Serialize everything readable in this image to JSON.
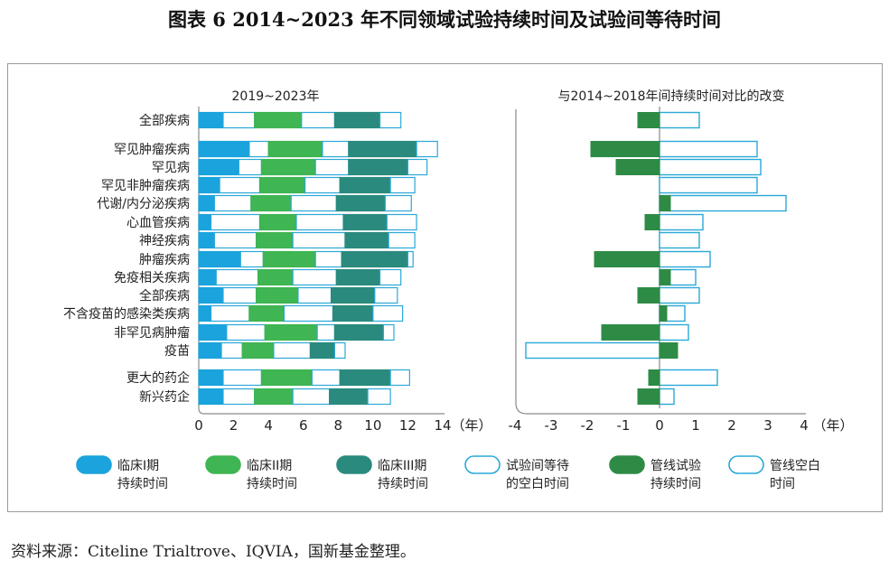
{
  "title": "图表 6  2014~2023 年不同领域试验持续时间及试验间等待时间",
  "source": "资料来源：Citeline Trialtrove、IQVIA，国新基金整理。",
  "colors": {
    "phase1": "#1aa3dc",
    "phase2": "#3fb553",
    "phase3": "#2a8a7e",
    "wait_fill": "#ffffff",
    "wait_stroke": "#2aa8d8",
    "pipeline_trial": "#2e8b46",
    "pipeline_gap_stroke": "#2aa8d8"
  },
  "chart_data": [
    {
      "type": "bar",
      "orientation": "horizontal-stacked",
      "title": "2019~2023年",
      "xlabel": "（年）",
      "xlim": [
        0,
        14
      ],
      "xticks": [
        "0",
        "2",
        "4",
        "6",
        "8",
        "10",
        "12",
        "14"
      ],
      "categories": [
        "全部疾病",
        "罕见肿瘤疾病",
        "罕见病",
        "罕见非肿瘤疾病",
        "代谢/内分泌疾病",
        "心血管疾病",
        "神经疾病",
        "肿瘤疾病",
        "免疫相关疾病",
        "全部疾病",
        "不含疫苗的感染类疾病",
        "非罕见病肿瘤",
        "疫苗",
        "更大的药企",
        "新兴药企"
      ],
      "series": [
        {
          "name": "临床I期持续时间",
          "values": [
            1.4,
            2.9,
            2.3,
            1.2,
            0.9,
            0.7,
            0.9,
            2.4,
            1.0,
            1.4,
            0.7,
            1.6,
            1.3,
            1.4,
            1.4
          ]
        },
        {
          "name": "试验间等待的空白时间",
          "values": [
            1.8,
            1.1,
            1.3,
            2.3,
            2.1,
            2.8,
            2.4,
            1.3,
            2.4,
            1.9,
            2.2,
            2.2,
            1.2,
            2.2,
            1.8
          ]
        },
        {
          "name": "临床II期持续时间",
          "values": [
            2.7,
            3.1,
            3.1,
            2.6,
            2.3,
            2.1,
            2.1,
            3.0,
            2.0,
            2.4,
            2.0,
            3.0,
            1.8,
            2.9,
            2.2
          ]
        },
        {
          "name": "试验间等待的空白时间",
          "values": [
            1.9,
            1.5,
            1.9,
            2.0,
            2.6,
            2.7,
            3.0,
            1.5,
            2.5,
            1.9,
            2.8,
            1.0,
            2.1,
            1.6,
            2.1
          ]
        },
        {
          "name": "临床III期持续时间",
          "values": [
            2.6,
            3.9,
            3.4,
            2.9,
            2.8,
            2.5,
            2.5,
            3.8,
            2.5,
            2.5,
            2.3,
            2.8,
            1.4,
            2.9,
            2.2
          ]
        },
        {
          "name": "试验间等待的空白时间",
          "values": [
            1.2,
            1.2,
            1.1,
            1.4,
            1.5,
            1.7,
            1.5,
            0.3,
            1.2,
            1.3,
            1.7,
            0.6,
            0.6,
            1.1,
            1.3
          ]
        }
      ]
    },
    {
      "type": "bar",
      "orientation": "horizontal-diverging",
      "title": "与2014~2018年间持续时间对比的改变",
      "xlabel": "（年）",
      "xlim": [
        -4,
        4
      ],
      "xticks": [
        "-4",
        "-3",
        "-2",
        "-1",
        "0",
        "1",
        "2",
        "3",
        "4"
      ],
      "categories": [
        "全部疾病",
        "罕见肿瘤疾病",
        "罕见病",
        "罕见非肿瘤疾病",
        "代谢/内分泌疾病",
        "心血管疾病",
        "神经疾病",
        "肿瘤疾病",
        "免疫相关疾病",
        "全部疾病",
        "不含疫苗的感染类疾病",
        "非罕见病肿瘤",
        "疫苗",
        "更大的药企",
        "新兴药企"
      ],
      "series": [
        {
          "name": "管线试验持续时间",
          "values": [
            -0.6,
            -1.9,
            -1.2,
            0.0,
            0.3,
            -0.4,
            0.0,
            -1.8,
            0.3,
            -0.6,
            0.2,
            -1.6,
            0.5,
            -0.3,
            -0.6
          ]
        },
        {
          "name": "管线空白时间",
          "values": [
            1.1,
            2.7,
            2.8,
            2.7,
            3.5,
            1.2,
            1.1,
            1.4,
            1.0,
            1.1,
            0.7,
            0.8,
            -3.7,
            1.6,
            0.4
          ]
        }
      ]
    }
  ],
  "legend": [
    {
      "label_line1": "临床I期",
      "label_line2": "持续时间",
      "kind": "phase1"
    },
    {
      "label_line1": "临床II期",
      "label_line2": "持续时间",
      "kind": "phase2"
    },
    {
      "label_line1": "临床III期",
      "label_line2": "持续时间",
      "kind": "phase3"
    },
    {
      "label_line1": "试验间等待",
      "label_line2": "的空白时间",
      "kind": "wait"
    },
    {
      "label_line1": "管线试验",
      "label_line2": "持续时间",
      "kind": "pipeline_trial"
    },
    {
      "label_line1": "管线空白",
      "label_line2": "时间",
      "kind": "pipeline_gap"
    }
  ]
}
